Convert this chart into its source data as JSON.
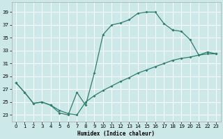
{
  "xlabel": "Humidex (Indice chaleur)",
  "bg_color": "#cce8e8",
  "line_color": "#2e7d6e",
  "grid_color": "#ffffff",
  "xlim": [
    -0.5,
    23.5
  ],
  "ylim": [
    22.0,
    40.5
  ],
  "yticks": [
    23,
    25,
    27,
    29,
    31,
    33,
    35,
    37,
    39
  ],
  "xticks": [
    0,
    1,
    2,
    3,
    4,
    5,
    6,
    7,
    8,
    9,
    10,
    11,
    12,
    13,
    14,
    15,
    16,
    17,
    18,
    19,
    20,
    21,
    22,
    23
  ],
  "line1_x": [
    0,
    1,
    2,
    3,
    4,
    5,
    6,
    7,
    8,
    9,
    10,
    11,
    12,
    13,
    14,
    15,
    16,
    17,
    18
  ],
  "line1_y": [
    28.0,
    26.5,
    24.8,
    25.0,
    24.5,
    23.3,
    23.0,
    26.5,
    24.5,
    29.5,
    35.5,
    37.0,
    37.3,
    37.8,
    38.8,
    39.0,
    39.0,
    37.2,
    36.2
  ],
  "line2_x": [
    18,
    19,
    20,
    21,
    22,
    23
  ],
  "line2_y": [
    36.2,
    36.0,
    34.7,
    32.3,
    32.8,
    32.5
  ],
  "line3_x": [
    0,
    1,
    2,
    3,
    4,
    5,
    6,
    7,
    8,
    9,
    10,
    11,
    12,
    13,
    14,
    15,
    16,
    17,
    18,
    19,
    20,
    21,
    22,
    23
  ],
  "line3_y": [
    28.0,
    26.5,
    24.8,
    25.0,
    24.5,
    23.7,
    23.2,
    23.0,
    25.0,
    26.0,
    26.8,
    27.5,
    28.2,
    28.8,
    29.5,
    30.0,
    30.5,
    31.0,
    31.5,
    31.8,
    32.0,
    32.3,
    32.5,
    32.5
  ]
}
